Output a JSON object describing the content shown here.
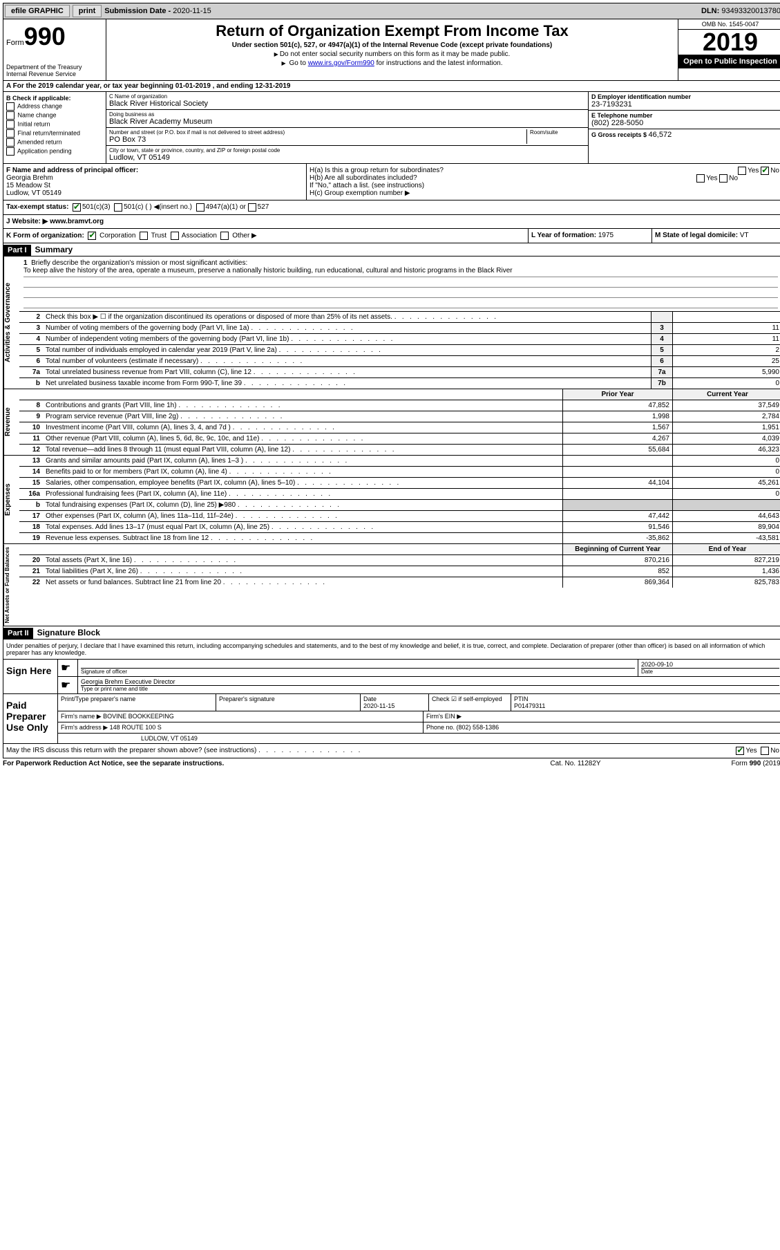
{
  "topbar": {
    "efile": "efile GRAPHIC",
    "print": "print",
    "sub_lbl": "Submission Date - ",
    "sub_date": "2020-11-15",
    "dln_lbl": "DLN: ",
    "dln": "93493320013780"
  },
  "header": {
    "form_prefix": "Form",
    "form_no": "990",
    "dept": "Department of the Treasury\nInternal Revenue Service",
    "title": "Return of Organization Exempt From Income Tax",
    "sub": "Under section 501(c), 527, or 4947(a)(1) of the Internal Revenue Code (except private foundations)",
    "note1": "Do not enter social security numbers on this form as it may be made public.",
    "note2_pre": "Go to ",
    "note2_link": "www.irs.gov/Form990",
    "note2_post": " for instructions and the latest information.",
    "omb": "OMB No. 1545-0047",
    "year": "2019",
    "inspection": "Open to Public Inspection"
  },
  "period": {
    "text": "A For the 2019 calendar year, or tax year beginning 01-01-2019   , and ending 12-31-2019"
  },
  "secB": {
    "lbl": "B Check if applicable:",
    "opts": [
      "Address change",
      "Name change",
      "Initial return",
      "Final return/terminated",
      "Amended return",
      "Application pending"
    ]
  },
  "secC": {
    "name_lbl": "C Name of organization",
    "name": "Black River Historical Society",
    "dba_lbl": "Doing business as",
    "dba": "Black River Academy Museum",
    "addr_lbl": "Number and street (or P.O. box if mail is not delivered to street address)",
    "room_lbl": "Room/suite",
    "addr": "PO Box 73",
    "city_lbl": "City or town, state or province, country, and ZIP or foreign postal code",
    "city": "Ludlow, VT  05149"
  },
  "secD": {
    "lbl": "D Employer identification number",
    "val": "23-7193231"
  },
  "secE": {
    "lbl": "E Telephone number",
    "val": "(802) 228-5050"
  },
  "secG": {
    "lbl": "G Gross receipts $ ",
    "val": "46,572"
  },
  "secF": {
    "lbl": "F  Name and address of principal officer:",
    "name": "Georgia Brehm",
    "addr1": "15 Meadow St",
    "addr2": "Ludlow, VT  05149"
  },
  "secH": {
    "a": "H(a)  Is this a group return for subordinates?",
    "a_yes": "Yes",
    "a_no": "No",
    "b": "H(b)  Are all subordinates included?",
    "b_note": "If \"No,\" attach a list. (see instructions)",
    "c": "H(c)  Group exemption number ▶"
  },
  "secI": {
    "lbl": "Tax-exempt status:",
    "o1": "501(c)(3)",
    "o2": "501(c) (  ) ◀(insert no.)",
    "o3": "4947(a)(1) or",
    "o4": "527"
  },
  "secJ": {
    "lbl": "J    Website: ▶",
    "val": "  www.bramvt.org"
  },
  "secK": {
    "lbl": "K Form of organization:",
    "o1": "Corporation",
    "o2": "Trust",
    "o3": "Association",
    "o4": "Other ▶"
  },
  "secL": {
    "lbl": "L Year of formation: ",
    "val": "1975"
  },
  "secM": {
    "lbl": "M State of legal domicile: ",
    "val": "VT"
  },
  "part1": {
    "hdr": "Part I",
    "title": "Summary"
  },
  "mission": {
    "num": "1",
    "lbl": "Briefly describe the organization's mission or most significant activities:",
    "txt": "To keep alive the history of the area, operate a museum, preserve a nationally historic building, run educational, cultural and historic programs in the Black River"
  },
  "gov_lines": [
    {
      "n": "2",
      "d": "Check this box ▶ ☐  if the organization discontinued its operations or disposed of more than 25% of its net assets.",
      "box": "",
      "v": ""
    },
    {
      "n": "3",
      "d": "Number of voting members of the governing body (Part VI, line 1a)",
      "box": "3",
      "v": "11"
    },
    {
      "n": "4",
      "d": "Number of independent voting members of the governing body (Part VI, line 1b)",
      "box": "4",
      "v": "11"
    },
    {
      "n": "5",
      "d": "Total number of individuals employed in calendar year 2019 (Part V, line 2a)",
      "box": "5",
      "v": "2"
    },
    {
      "n": "6",
      "d": "Total number of volunteers (estimate if necessary)",
      "box": "6",
      "v": "25"
    },
    {
      "n": "7a",
      "d": "Total unrelated business revenue from Part VIII, column (C), line 12",
      "box": "7a",
      "v": "5,990"
    },
    {
      "n": "b",
      "d": "Net unrelated business taxable income from Form 990-T, line 39",
      "box": "7b",
      "v": "0"
    }
  ],
  "col_hdr": {
    "prior": "Prior Year",
    "current": "Current Year"
  },
  "rev_lines": [
    {
      "n": "8",
      "d": "Contributions and grants (Part VIII, line 1h)",
      "p": "47,852",
      "c": "37,549"
    },
    {
      "n": "9",
      "d": "Program service revenue (Part VIII, line 2g)",
      "p": "1,998",
      "c": "2,784"
    },
    {
      "n": "10",
      "d": "Investment income (Part VIII, column (A), lines 3, 4, and 7d )",
      "p": "1,567",
      "c": "1,951"
    },
    {
      "n": "11",
      "d": "Other revenue (Part VIII, column (A), lines 5, 6d, 8c, 9c, 10c, and 11e)",
      "p": "4,267",
      "c": "4,039"
    },
    {
      "n": "12",
      "d": "Total revenue—add lines 8 through 11 (must equal Part VIII, column (A), line 12)",
      "p": "55,684",
      "c": "46,323"
    }
  ],
  "exp_lines": [
    {
      "n": "13",
      "d": "Grants and similar amounts paid (Part IX, column (A), lines 1–3 )",
      "p": "",
      "c": "0"
    },
    {
      "n": "14",
      "d": "Benefits paid to or for members (Part IX, column (A), line 4)",
      "p": "",
      "c": "0"
    },
    {
      "n": "15",
      "d": "Salaries, other compensation, employee benefits (Part IX, column (A), lines 5–10)",
      "p": "44,104",
      "c": "45,261"
    },
    {
      "n": "16a",
      "d": "Professional fundraising fees (Part IX, column (A), line 11e)",
      "p": "",
      "c": "0"
    },
    {
      "n": "b",
      "d": "Total fundraising expenses (Part IX, column (D), line 25) ▶980",
      "p": "",
      "c": "",
      "grey": true
    },
    {
      "n": "17",
      "d": "Other expenses (Part IX, column (A), lines 11a–11d, 11f–24e)",
      "p": "47,442",
      "c": "44,643"
    },
    {
      "n": "18",
      "d": "Total expenses. Add lines 13–17 (must equal Part IX, column (A), line 25)",
      "p": "91,546",
      "c": "89,904"
    },
    {
      "n": "19",
      "d": "Revenue less expenses. Subtract line 18 from line 12",
      "p": "-35,862",
      "c": "-43,581"
    }
  ],
  "net_hdr": {
    "boy": "Beginning of Current Year",
    "eoy": "End of Year"
  },
  "net_lines": [
    {
      "n": "20",
      "d": "Total assets (Part X, line 16)",
      "p": "870,216",
      "c": "827,219"
    },
    {
      "n": "21",
      "d": "Total liabilities (Part X, line 26)",
      "p": "852",
      "c": "1,436"
    },
    {
      "n": "22",
      "d": "Net assets or fund balances. Subtract line 21 from line 20",
      "p": "869,364",
      "c": "825,783"
    }
  ],
  "side_labels": {
    "gov": "Activities & Governance",
    "rev": "Revenue",
    "exp": "Expenses",
    "net": "Net Assets or Fund Balances"
  },
  "part2": {
    "hdr": "Part II",
    "title": "Signature Block"
  },
  "penalty": "Under penalties of perjury, I declare that I have examined this return, including accompanying schedules and statements, and to the best of my knowledge and belief, it is true, correct, and complete. Declaration of preparer (other than officer) is based on all information of which preparer has any knowledge.",
  "sign": {
    "lbl": "Sign Here",
    "sig_lbl": "Signature of officer",
    "date_lbl": "Date",
    "date": "2020-09-10",
    "name": "Georgia Brehm  Executive Director",
    "name_lbl": "Type or print name and title"
  },
  "preparer": {
    "lbl": "Paid Preparer Use Only",
    "name_lbl": "Print/Type preparer's name",
    "sig_lbl": "Preparer's signature",
    "date_lbl": "Date",
    "date": "2020-11-15",
    "check_lbl": "Check ☑ if self-employed",
    "ptin_lbl": "PTIN",
    "ptin": "P01479311",
    "firm_lbl": "Firm's name    ▶",
    "firm": "BOVINE BOOKKEEPING",
    "ein_lbl": "Firm's EIN ▶",
    "addr_lbl": "Firm's address ▶",
    "addr1": "148 ROUTE 100 S",
    "addr2": "LUDLOW, VT  05149",
    "phone_lbl": "Phone no. ",
    "phone": "(802) 558-1386"
  },
  "discuss": {
    "q": "May the IRS discuss this return with the preparer shown above? (see instructions)",
    "yes": "Yes",
    "no": "No"
  },
  "footer": {
    "l": "For Paperwork Reduction Act Notice, see the separate instructions.",
    "m": "Cat. No. 11282Y",
    "r": "Form 990 (2019)"
  }
}
